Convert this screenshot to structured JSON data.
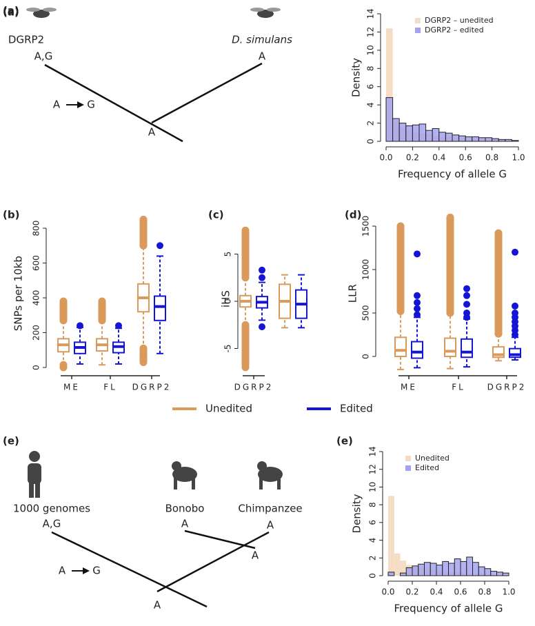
{
  "diagrams": [
    {
      "panel": "(a)",
      "labels": [
        "DGRP2",
        "A,G",
        "D. simulans",
        "A",
        "A",
        "G",
        "A"
      ]
    },
    {
      "panel": "(e)",
      "labels": [
        "1000 genomes",
        "A,G",
        "Bonobo",
        "A",
        "Chimpanzee",
        "A",
        "A",
        "A",
        "G",
        "A"
      ]
    }
  ],
  "chart_data": [
    {
      "type": "histogram",
      "panel": "(a)",
      "ylabel": "Density",
      "xlabel": "Frequency of allele G",
      "bins": [
        0,
        0.05,
        0.1,
        0.15,
        0.2,
        0.25,
        0.3,
        0.35,
        0.4,
        0.45,
        0.5,
        0.55,
        0.6,
        0.65,
        0.7,
        0.75,
        0.8,
        0.85,
        0.9,
        0.95,
        1.0
      ],
      "series": [
        {
          "name": "DGRP2 – unedited",
          "color": "#f5dcc4",
          "values": [
            12.4,
            2.2,
            1.5,
            1.2,
            1.0,
            0.9,
            0.8,
            0.6,
            0.5,
            0.5,
            0.4,
            0.4,
            0.3,
            0.3,
            0.3,
            0.2,
            0.2,
            0.2,
            0.1,
            0.1
          ]
        },
        {
          "name": "DGRP2 – edited",
          "color": "#a4a3ef",
          "values": [
            4.8,
            2.5,
            2.0,
            1.7,
            1.8,
            1.9,
            1.2,
            1.4,
            1.0,
            0.9,
            0.7,
            0.6,
            0.5,
            0.5,
            0.4,
            0.4,
            0.3,
            0.2,
            0.2,
            0.1
          ]
        }
      ],
      "xlim": [
        0,
        1
      ],
      "xticks": [
        {
          "value": 0,
          "label": "0.0"
        },
        {
          "value": 0.2,
          "label": "0.2"
        },
        {
          "value": 0.4,
          "label": "0.4"
        },
        {
          "value": 0.6,
          "label": "0.6"
        },
        {
          "value": 0.8,
          "label": "0.8"
        },
        {
          "value": 1,
          "label": "1.0"
        }
      ],
      "ylim": [
        0,
        14
      ],
      "yticks": [
        0,
        2,
        4,
        6,
        8,
        10,
        12,
        14
      ],
      "legend": "top-right"
    },
    {
      "type": "box",
      "panel": "(b)",
      "ylabel": "SNPs per 10kb",
      "categories": [
        "ME",
        "FL",
        "DGRP2"
      ],
      "ylim": [
        0,
        850
      ],
      "yticks": [
        0,
        200,
        400,
        600,
        800
      ],
      "series": [
        {
          "name": "Unedited",
          "color": "#d99a5b",
          "values": [
            {
              "min": 15,
              "q1": 90,
              "median": 130,
              "q3": 165,
              "max": 270,
              "outlier_ranges": [
                [
                  270,
                  380
                ],
                [
                  0,
                  15
                ]
              ]
            },
            {
              "min": 15,
              "q1": 95,
              "median": 130,
              "q3": 165,
              "max": 270,
              "outlier_ranges": [
                [
                  270,
                  380
                ]
              ]
            },
            {
              "min": 110,
              "q1": 320,
              "median": 400,
              "q3": 480,
              "max": 700,
              "outlier_ranges": [
                [
                  700,
                  850
                ],
                [
                  30,
                  110
                ]
              ]
            }
          ]
        },
        {
          "name": "Edited",
          "color": "#1515d6",
          "values": [
            {
              "min": 20,
              "q1": 80,
              "median": 115,
              "q3": 145,
              "max": 230,
              "outliers": [
                240
              ]
            },
            {
              "min": 20,
              "q1": 85,
              "median": 120,
              "q3": 145,
              "max": 225,
              "outliers": [
                240
              ]
            },
            {
              "min": 80,
              "q1": 270,
              "median": 350,
              "q3": 410,
              "max": 640,
              "outliers": [
                700
              ]
            }
          ]
        }
      ]
    },
    {
      "type": "box",
      "panel": "(c)",
      "ylabel": "iHS",
      "categories": [
        "DGRP2",
        null
      ],
      "ylim": [
        -7.5,
        8
      ],
      "yticks": [
        -5,
        0,
        5
      ],
      "series": [
        {
          "name": "Unedited",
          "color": "#d99a5b",
          "values": [
            {
              "min": -2.5,
              "q1": -0.6,
              "median": 0,
              "q3": 0.6,
              "max": 2.5,
              "outlier_ranges": [
                [
                  2.5,
                  7.5
                ],
                [
                  -7,
                  -2.5
                ]
              ]
            },
            {
              "min": -2.8,
              "q1": -1.8,
              "median": 0,
              "q3": 1.8,
              "max": 2.8
            }
          ]
        },
        {
          "name": "Edited",
          "color": "#1515d6",
          "values": [
            {
              "min": -2,
              "q1": -0.7,
              "median": -0.1,
              "q3": 0.5,
              "max": 2,
              "outliers": [
                2.5,
                3.3,
                -2.7
              ]
            },
            {
              "min": -2.8,
              "q1": -1.8,
              "median": -0.3,
              "q3": 1.2,
              "max": 2.8
            }
          ]
        }
      ]
    },
    {
      "type": "box",
      "panel": "(d)",
      "ylabel": "LLR",
      "categories": [
        "ME",
        "FL",
        "DGRP2"
      ],
      "ylim": [
        -150,
        1600
      ],
      "yticks": [
        0,
        500,
        1000,
        1500
      ],
      "series": [
        {
          "name": "Unedited",
          "color": "#d99a5b",
          "values": [
            {
              "min": -150,
              "q1": 0,
              "median": 70,
              "q3": 220,
              "max": 520,
              "outlier_ranges": [
                [
                  520,
                  1500
                ]
              ]
            },
            {
              "min": -140,
              "q1": 0,
              "median": 60,
              "q3": 210,
              "max": 500,
              "outlier_ranges": [
                [
                  500,
                  1600
                ]
              ]
            },
            {
              "min": -50,
              "q1": -10,
              "median": 20,
              "q3": 110,
              "max": 260,
              "outlier_ranges": [
                [
                  260,
                  1420
                ]
              ]
            }
          ]
        },
        {
          "name": "Edited",
          "color": "#1515d6",
          "values": [
            {
              "min": -130,
              "q1": -20,
              "median": 50,
              "q3": 170,
              "max": 450,
              "outliers": [
                480,
                550,
                620,
                700,
                1180
              ]
            },
            {
              "min": -120,
              "q1": -10,
              "median": 50,
              "q3": 200,
              "max": 430,
              "outliers": [
                450,
                500,
                600,
                700,
                780
              ]
            },
            {
              "min": -40,
              "q1": -10,
              "median": 20,
              "q3": 90,
              "max": 220,
              "outliers": [
                250,
                300,
                350,
                400,
                450,
                500,
                580,
                1200
              ]
            }
          ]
        }
      ]
    },
    {
      "type": "histogram",
      "panel": "(e)",
      "ylabel": "Density",
      "xlabel": "Frequency of allele G",
      "bins": [
        0,
        0.05,
        0.1,
        0.15,
        0.2,
        0.25,
        0.3,
        0.35,
        0.4,
        0.45,
        0.5,
        0.55,
        0.6,
        0.65,
        0.7,
        0.75,
        0.8,
        0.85,
        0.9,
        0.95,
        1.0
      ],
      "series": [
        {
          "name": "Unedited",
          "color": "#f5dcc4",
          "values": [
            9.0,
            2.5,
            1.7,
            1.2,
            1.0,
            0.9,
            0.8,
            0.7,
            0.6,
            0.5,
            0.4,
            0.4,
            0.3,
            0.3,
            0.2,
            0.2,
            0.2,
            0.1,
            0.1,
            0.1
          ]
        },
        {
          "name": "Edited",
          "color": "#a4a3ef",
          "values": [
            0.4,
            0,
            0.3,
            0.9,
            1.1,
            1.3,
            1.5,
            1.4,
            1.2,
            1.6,
            1.4,
            1.9,
            1.6,
            2.1,
            1.5,
            1.0,
            0.8,
            0.5,
            0.4,
            0.3
          ]
        }
      ],
      "xlim": [
        0,
        1
      ],
      "xticks": [
        {
          "value": 0,
          "label": "0.0"
        },
        {
          "value": 0.2,
          "label": "0.2"
        },
        {
          "value": 0.4,
          "label": "0.4"
        },
        {
          "value": 0.6,
          "label": "0.6"
        },
        {
          "value": 0.8,
          "label": "0.8"
        },
        {
          "value": 1,
          "label": "1.0"
        }
      ],
      "ylim": [
        0,
        14
      ],
      "yticks": [
        0,
        2,
        4,
        6,
        8,
        10,
        12,
        14
      ],
      "legend": "top-right"
    }
  ]
}
